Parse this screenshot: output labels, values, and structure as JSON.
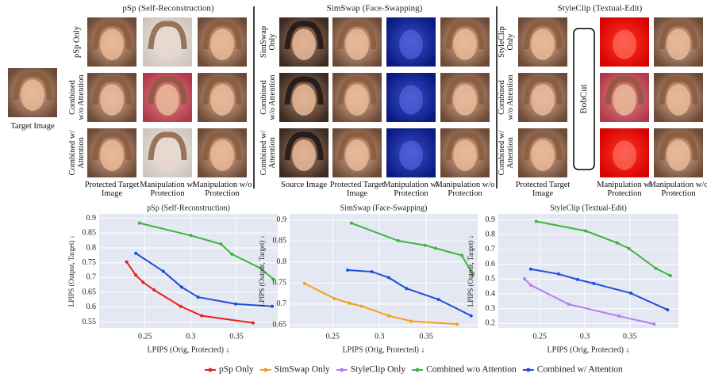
{
  "figure": {
    "target_label": "Target Image",
    "bobcut": "BobCut",
    "panels": [
      {
        "title": "pSp (Self-Reconstruction)",
        "row_labels": [
          "pSp Only",
          "Combined w/o Attention",
          "Combined w/ Attention"
        ],
        "column_labels": [
          "Protected Target Image",
          "Manipulation w/ Protection",
          "Manipulation w/o Protection"
        ]
      },
      {
        "title": "SimSwap (Face-Swapping)",
        "row_labels": [
          "SimSwap Only",
          "Combined w/o Attention",
          "Combined w/ Attention"
        ],
        "column_labels": [
          "Source Image",
          "Protected Target Image",
          "Manipulation w/ Protection",
          "Manipulation w/o Protection"
        ]
      },
      {
        "title": "StyleClip (Textual-Edit)",
        "row_labels": [
          "StyleClip Only",
          "Combined w/o Attention",
          "Combined w/ Attention"
        ],
        "column_labels": [
          "Protected Target Image",
          "Manipulation w/ Protection",
          "Manipulation w/o Protection"
        ]
      }
    ]
  },
  "chart_data": [
    {
      "type": "line",
      "title": "pSp (Self-Reconstruction)",
      "x_label": "LPIPS (Orig, Protected) ↓",
      "y_label": "LPIPS (Output, Target) ↓",
      "xlim": [
        0.2,
        0.395
      ],
      "ylim": [
        0.53,
        0.915
      ],
      "xticks": [
        0.25,
        0.3,
        0.35
      ],
      "yticks": [
        0.55,
        0.6,
        0.65,
        0.7,
        0.75,
        0.8,
        0.85,
        0.9
      ],
      "grid": true,
      "series": [
        {
          "name": "pSp Only",
          "color": "#e8201c",
          "x": [
            0.23,
            0.24,
            0.248,
            0.26,
            0.289,
            0.312,
            0.368
          ],
          "values": [
            0.753,
            0.708,
            0.684,
            0.658,
            0.603,
            0.571,
            0.547
          ]
        },
        {
          "name": "Combined w/o Attention",
          "color": "#3fb43f",
          "x": [
            0.244,
            0.3,
            0.333,
            0.345,
            0.376,
            0.39
          ],
          "values": [
            0.884,
            0.842,
            0.813,
            0.779,
            0.732,
            0.695
          ]
        },
        {
          "name": "Combined w/ Attention",
          "color": "#1f4fd8",
          "x": [
            0.24,
            0.27,
            0.29,
            0.308,
            0.349,
            0.389
          ],
          "values": [
            0.782,
            0.721,
            0.668,
            0.634,
            0.611,
            0.603
          ]
        }
      ]
    },
    {
      "type": "line",
      "title": "SimSwap (Face-Swapping)",
      "x_label": "LPIPS (Orig, Protected) ↓",
      "y_label": "LPIPS (Output, Target) ↓",
      "xlim": [
        0.204,
        0.405
      ],
      "ylim": [
        0.643,
        0.915
      ],
      "xticks": [
        0.25,
        0.3,
        0.35
      ],
      "yticks": [
        0.65,
        0.7,
        0.75,
        0.8,
        0.85,
        0.9
      ],
      "grid": true,
      "series": [
        {
          "name": "SimSwap Only",
          "color": "#f5a01a",
          "x": [
            0.22,
            0.252,
            0.268,
            0.281,
            0.31,
            0.334,
            0.383
          ],
          "values": [
            0.749,
            0.713,
            0.702,
            0.695,
            0.672,
            0.659,
            0.652
          ]
        },
        {
          "name": "Combined w/o Attention",
          "color": "#3fb43f",
          "x": [
            0.27,
            0.32,
            0.349,
            0.36,
            0.388,
            0.4
          ],
          "values": [
            0.893,
            0.851,
            0.84,
            0.833,
            0.816,
            0.769
          ]
        },
        {
          "name": "Combined w/ Attention",
          "color": "#1f4fd8",
          "x": [
            0.266,
            0.292,
            0.31,
            0.329,
            0.363,
            0.398
          ],
          "values": [
            0.781,
            0.777,
            0.763,
            0.737,
            0.711,
            0.672
          ]
        }
      ]
    },
    {
      "type": "line",
      "title": "StyleClip (Textual-Edit)",
      "x_label": "LPIPS (Orig, Protected) ↓",
      "y_label": "LPIPS (Output, Target) ↓",
      "xlim": [
        0.204,
        0.404
      ],
      "ylim": [
        0.17,
        0.94
      ],
      "xticks": [
        0.25,
        0.3,
        0.35
      ],
      "yticks": [
        0.2,
        0.3,
        0.4,
        0.5,
        0.6,
        0.7,
        0.8,
        0.9
      ],
      "grid": true,
      "series": [
        {
          "name": "StyleClip Only",
          "color": "#b57de8",
          "x": [
            0.233,
            0.24,
            0.282,
            0.338,
            0.377
          ],
          "values": [
            0.502,
            0.459,
            0.33,
            0.25,
            0.196
          ]
        },
        {
          "name": "Combined w/o Attention",
          "color": "#3fb43f",
          "x": [
            0.246,
            0.301,
            0.336,
            0.349,
            0.379,
            0.395
          ],
          "values": [
            0.889,
            0.825,
            0.744,
            0.706,
            0.572,
            0.523
          ]
        },
        {
          "name": "Combined w/ Attention",
          "color": "#1f4fd8",
          "x": [
            0.24,
            0.271,
            0.292,
            0.31,
            0.351,
            0.392
          ],
          "values": [
            0.567,
            0.534,
            0.497,
            0.47,
            0.405,
            0.292
          ]
        }
      ]
    }
  ]
}
